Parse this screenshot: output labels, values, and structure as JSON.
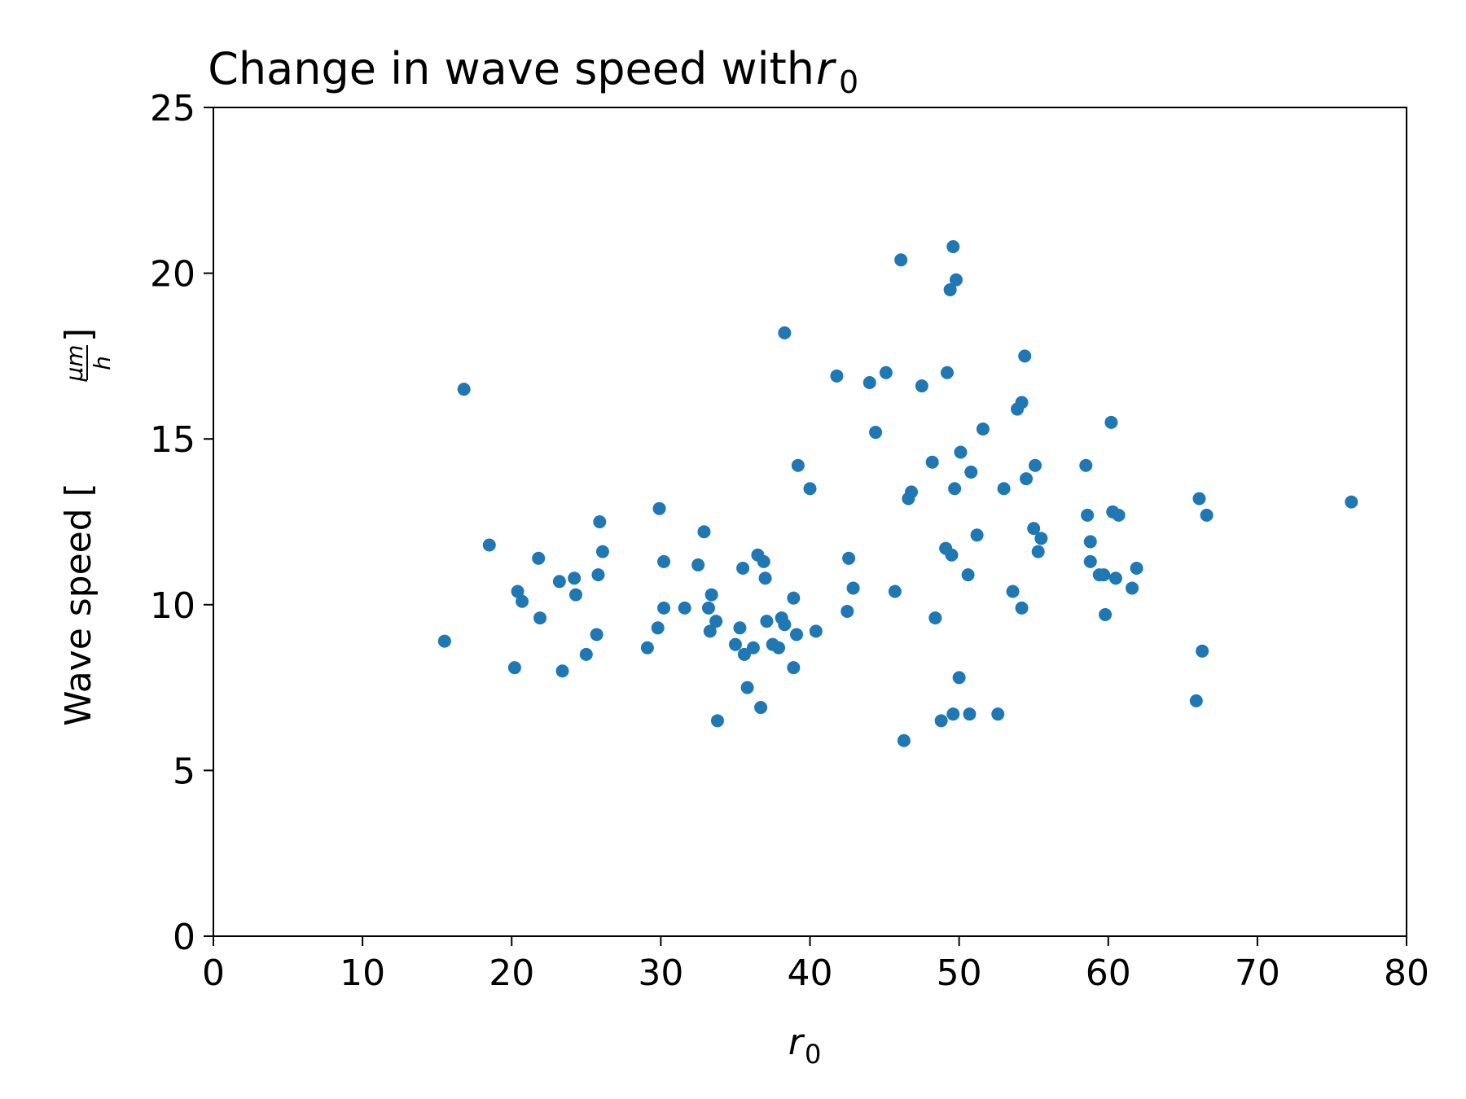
{
  "chart_data": {
    "type": "scatter",
    "title": {
      "text": "Change in wave speed with ",
      "var": "r",
      "sub": "0"
    },
    "xlabel": {
      "var": "r",
      "sub": "0"
    },
    "ylabel": {
      "text": "Wave speed [",
      "num": "μm",
      "den": "h",
      "close": "]"
    },
    "xlim": [
      0,
      80
    ],
    "ylim": [
      0,
      25
    ],
    "xticks": [
      0,
      10,
      20,
      30,
      40,
      50,
      60,
      70,
      80
    ],
    "yticks": [
      0,
      5,
      10,
      15,
      20,
      25
    ],
    "grid": false,
    "colors": {
      "points": "#1f77b4"
    },
    "points": [
      [
        15.5,
        8.9
      ],
      [
        16.8,
        16.5
      ],
      [
        18.5,
        11.8
      ],
      [
        20.2,
        8.1
      ],
      [
        20.4,
        10.4
      ],
      [
        20.7,
        10.1
      ],
      [
        21.8,
        11.4
      ],
      [
        21.9,
        9.6
      ],
      [
        23.2,
        10.7
      ],
      [
        23.4,
        8.0
      ],
      [
        24.2,
        10.8
      ],
      [
        24.3,
        10.3
      ],
      [
        25.0,
        8.5
      ],
      [
        25.7,
        9.1
      ],
      [
        25.8,
        10.9
      ],
      [
        25.9,
        12.5
      ],
      [
        26.1,
        11.6
      ],
      [
        29.1,
        8.7
      ],
      [
        29.8,
        9.3
      ],
      [
        29.9,
        12.9
      ],
      [
        30.2,
        11.3
      ],
      [
        30.2,
        9.9
      ],
      [
        31.6,
        9.9
      ],
      [
        32.5,
        11.2
      ],
      [
        32.9,
        12.2
      ],
      [
        33.2,
        9.9
      ],
      [
        33.3,
        9.2
      ],
      [
        33.4,
        10.3
      ],
      [
        33.7,
        9.5
      ],
      [
        33.8,
        6.5
      ],
      [
        35.0,
        8.8
      ],
      [
        35.3,
        9.3
      ],
      [
        35.5,
        11.1
      ],
      [
        35.6,
        8.5
      ],
      [
        35.8,
        7.5
      ],
      [
        36.2,
        8.7
      ],
      [
        36.5,
        11.5
      ],
      [
        36.7,
        6.9
      ],
      [
        36.9,
        11.3
      ],
      [
        37.0,
        10.8
      ],
      [
        37.1,
        9.5
      ],
      [
        37.5,
        8.8
      ],
      [
        37.9,
        8.7
      ],
      [
        38.1,
        9.6
      ],
      [
        38.3,
        9.4
      ],
      [
        38.3,
        18.2
      ],
      [
        38.9,
        10.2
      ],
      [
        38.9,
        8.1
      ],
      [
        39.1,
        9.1
      ],
      [
        39.2,
        14.2
      ],
      [
        40.0,
        13.5
      ],
      [
        40.4,
        9.2
      ],
      [
        41.8,
        16.9
      ],
      [
        42.5,
        9.8
      ],
      [
        42.6,
        11.4
      ],
      [
        42.9,
        10.5
      ],
      [
        44.0,
        16.7
      ],
      [
        44.4,
        15.2
      ],
      [
        45.1,
        17.0
      ],
      [
        45.7,
        10.4
      ],
      [
        46.1,
        20.4
      ],
      [
        46.3,
        5.9
      ],
      [
        46.6,
        13.2
      ],
      [
        46.8,
        13.4
      ],
      [
        47.5,
        16.6
      ],
      [
        48.2,
        14.3
      ],
      [
        48.4,
        9.6
      ],
      [
        48.8,
        6.5
      ],
      [
        49.1,
        11.7
      ],
      [
        49.2,
        17.0
      ],
      [
        49.4,
        19.5
      ],
      [
        49.5,
        11.5
      ],
      [
        49.6,
        20.8
      ],
      [
        49.6,
        6.7
      ],
      [
        49.7,
        13.5
      ],
      [
        49.8,
        19.8
      ],
      [
        50.0,
        7.8
      ],
      [
        50.1,
        14.6
      ],
      [
        50.6,
        10.9
      ],
      [
        50.7,
        6.7
      ],
      [
        50.8,
        14.0
      ],
      [
        51.2,
        12.1
      ],
      [
        51.6,
        15.3
      ],
      [
        52.6,
        6.7
      ],
      [
        53.0,
        13.5
      ],
      [
        53.6,
        10.4
      ],
      [
        53.9,
        15.9
      ],
      [
        54.2,
        16.1
      ],
      [
        54.2,
        9.9
      ],
      [
        54.4,
        17.5
      ],
      [
        54.5,
        13.8
      ],
      [
        55.0,
        12.3
      ],
      [
        55.1,
        14.2
      ],
      [
        55.3,
        11.6
      ],
      [
        55.5,
        12.0
      ],
      [
        58.5,
        14.2
      ],
      [
        58.6,
        12.7
      ],
      [
        58.8,
        11.9
      ],
      [
        58.8,
        11.3
      ],
      [
        59.4,
        10.9
      ],
      [
        59.7,
        10.9
      ],
      [
        59.8,
        9.7
      ],
      [
        60.2,
        15.5
      ],
      [
        60.3,
        12.8
      ],
      [
        60.5,
        10.8
      ],
      [
        60.7,
        12.7
      ],
      [
        61.6,
        10.5
      ],
      [
        61.9,
        11.1
      ],
      [
        65.9,
        7.1
      ],
      [
        66.1,
        13.2
      ],
      [
        66.3,
        8.6
      ],
      [
        66.6,
        12.7
      ],
      [
        76.3,
        13.1
      ]
    ]
  }
}
